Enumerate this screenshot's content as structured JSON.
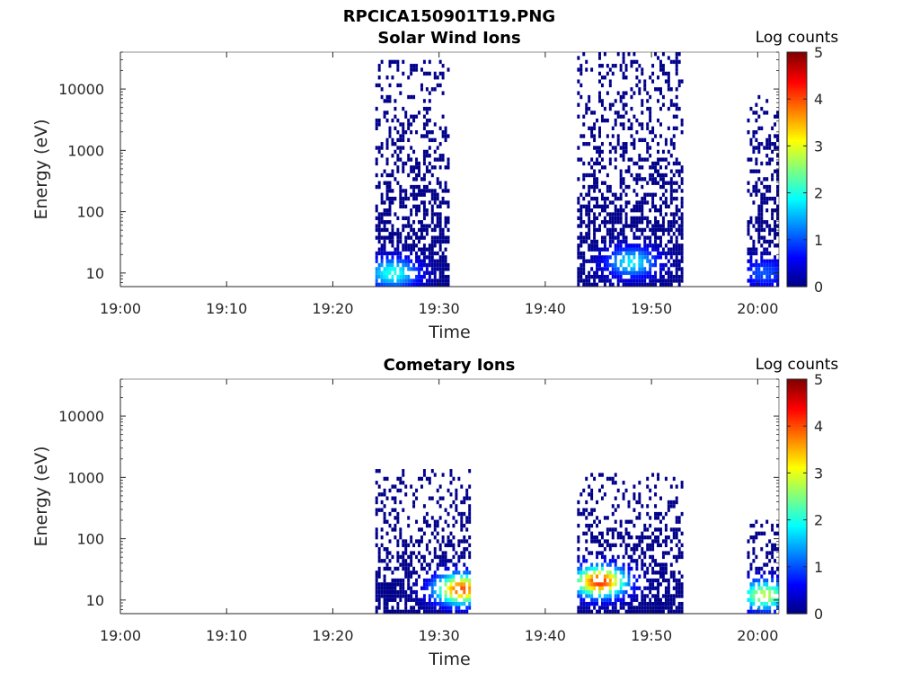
{
  "figure_title": "RPCICA150901T19.PNG",
  "chart_data": [
    {
      "type": "heatmap",
      "title": "Solar Wind Ions",
      "xlabel": "Time",
      "ylabel": "Energy (eV)",
      "xlim": [
        "19:00",
        "20:02"
      ],
      "ylim_eV": [
        6,
        40000
      ],
      "y_scale": "log",
      "x_ticks": [
        "19:00",
        "19:10",
        "19:20",
        "19:30",
        "19:40",
        "19:50",
        "20:00"
      ],
      "y_ticks": [
        "10",
        "100",
        "1000",
        "10000"
      ],
      "colorbar": {
        "title": "Log counts",
        "range": [
          0,
          5
        ],
        "ticks": [
          "0",
          "1",
          "2",
          "3",
          "4",
          "5"
        ],
        "colormap": "jet"
      },
      "bursts": [
        {
          "time_start": "19:24",
          "time_end": "19:31",
          "energy_range_eV": [
            6,
            30000
          ],
          "peak_log_counts": 2.0,
          "peak_energy_eV": 10,
          "peak_time": "19:25.5"
        },
        {
          "time_start": "19:43",
          "time_end": "19:53",
          "energy_range_eV": [
            6,
            40000
          ],
          "peak_log_counts": 1.8,
          "peak_energy_eV": 15,
          "peak_time": "19:48"
        },
        {
          "time_start": "19:59",
          "time_end": "20:02",
          "energy_range_eV": [
            6,
            8000
          ],
          "peak_log_counts": 1.0,
          "peak_energy_eV": 10,
          "peak_time": "20:00.5"
        }
      ]
    },
    {
      "type": "heatmap",
      "title": "Cometary Ions",
      "xlabel": "Time",
      "ylabel": "Energy (eV)",
      "xlim": [
        "19:00",
        "20:02"
      ],
      "ylim_eV": [
        6,
        40000
      ],
      "y_scale": "log",
      "x_ticks": [
        "19:00",
        "19:10",
        "19:20",
        "19:30",
        "19:40",
        "19:50",
        "20:00"
      ],
      "y_ticks": [
        "10",
        "100",
        "1000",
        "10000"
      ],
      "colorbar": {
        "title": "Log counts",
        "range": [
          0,
          5
        ],
        "ticks": [
          "0",
          "1",
          "2",
          "3",
          "4",
          "5"
        ],
        "colormap": "jet"
      },
      "bursts": [
        {
          "time_start": "19:24",
          "time_end": "19:33",
          "energy_range_eV": [
            6,
            1300
          ],
          "peak_log_counts": 4.0,
          "peak_energy_eV": 15,
          "peak_time": "19:32"
        },
        {
          "time_start": "19:43",
          "time_end": "19:53",
          "energy_range_eV": [
            6,
            1200
          ],
          "peak_log_counts": 4.2,
          "peak_energy_eV": 20,
          "peak_time": "19:45"
        },
        {
          "time_start": "19:59",
          "time_end": "20:02",
          "energy_range_eV": [
            6,
            200
          ],
          "peak_log_counts": 2.8,
          "peak_energy_eV": 12,
          "peak_time": "20:00.5"
        }
      ]
    }
  ]
}
